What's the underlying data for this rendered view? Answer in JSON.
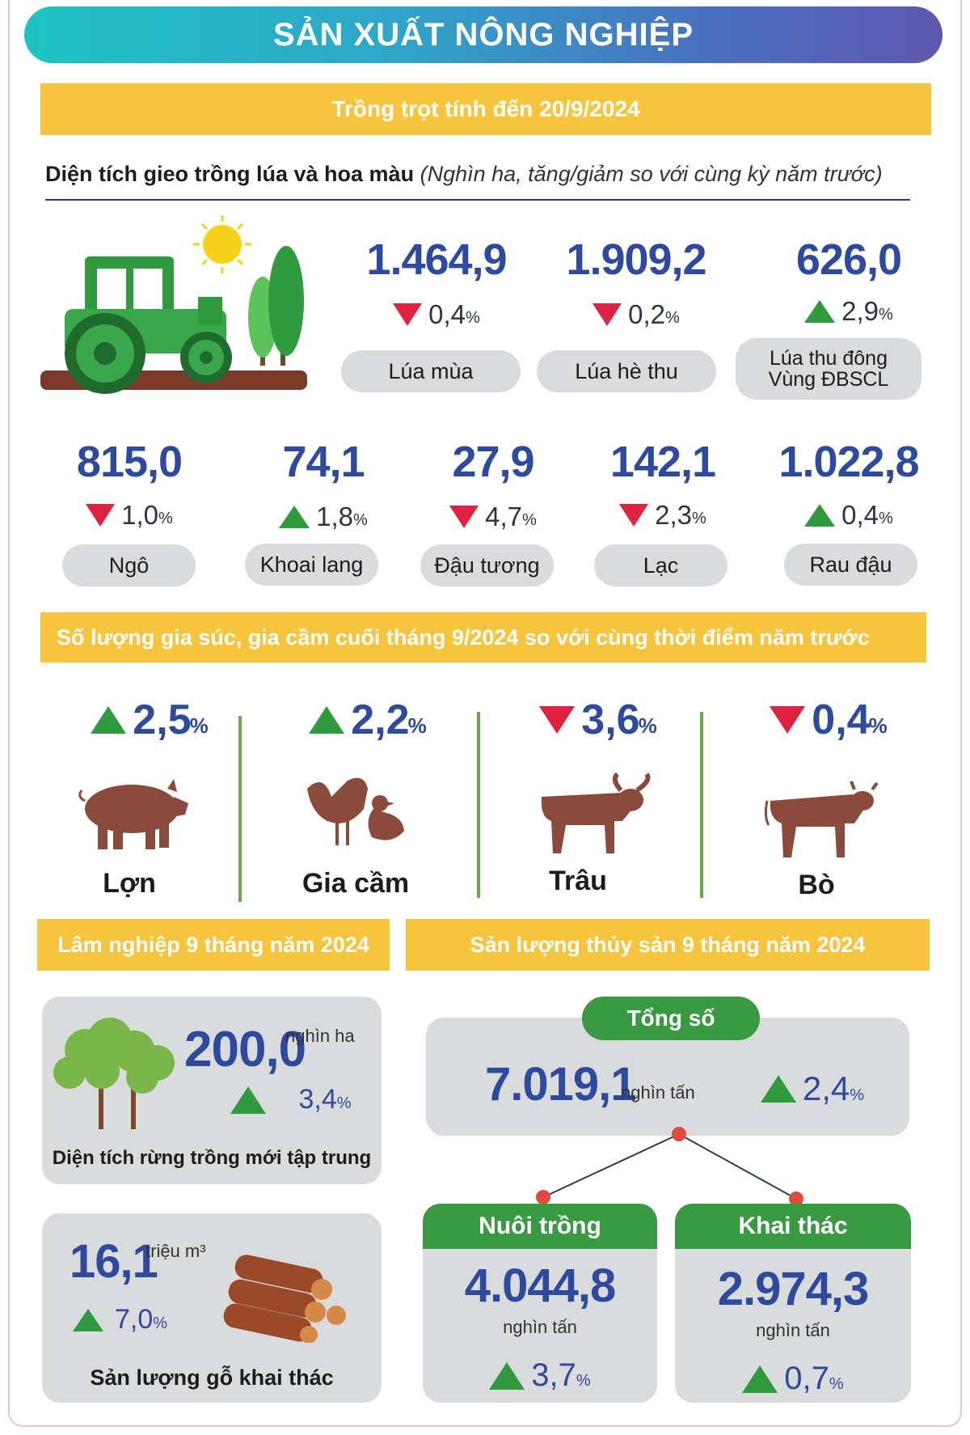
{
  "title": "SẢN XUẤT NÔNG NGHIỆP",
  "crops": {
    "header": "Trồng trọt tính đến 20/9/2024",
    "subtitle": "Diện tích gieo trồng lúa và hoa màu",
    "subtitle_note": "(Nghìn ha, tăng/giảm so với cùng kỳ năm trước)",
    "items": [
      {
        "value": "1.464,9",
        "change": "0,4",
        "pct": "%",
        "direction": "down",
        "label": "Lúa mùa"
      },
      {
        "value": "1.909,2",
        "change": "0,2",
        "pct": "%",
        "direction": "down",
        "label": "Lúa hè thu"
      },
      {
        "value": "626,0",
        "change": "2,9",
        "pct": "%",
        "direction": "up",
        "label": "Lúa thu đông",
        "label2": "Vùng ĐBSCL"
      },
      {
        "value": "815,0",
        "change": "1,0",
        "pct": "%",
        "direction": "down",
        "label": "Ngô"
      },
      {
        "value": "74,1",
        "change": "1,8",
        "pct": "%",
        "direction": "up",
        "label": "Khoai lang"
      },
      {
        "value": "27,9",
        "change": "4,7",
        "pct": "%",
        "direction": "down",
        "label": "Đậu tương"
      },
      {
        "value": "142,1",
        "change": "2,3",
        "pct": "%",
        "direction": "down",
        "label": "Lạc"
      },
      {
        "value": "1.022,8",
        "change": "0,4",
        "pct": "%",
        "direction": "up",
        "label": "Rau đậu"
      }
    ]
  },
  "livestock": {
    "header": "Số lượng gia súc, gia cầm cuối tháng 9/2024 so với cùng thời điểm năm trước",
    "items": [
      {
        "change": "2,5",
        "pct": "%",
        "direction": "up",
        "label": "Lợn",
        "icon": "pig-icon"
      },
      {
        "change": "2,2",
        "pct": "%",
        "direction": "up",
        "label": "Gia cầm",
        "icon": "poultry-icon"
      },
      {
        "change": "3,6",
        "pct": "%",
        "direction": "down",
        "label": "Trâu",
        "icon": "buffalo-icon"
      },
      {
        "change": "0,4",
        "pct": "%",
        "direction": "down",
        "label": "Bò",
        "icon": "cow-icon"
      }
    ]
  },
  "forestry": {
    "header": "Lâm nghiệp 9 tháng năm 2024",
    "planted": {
      "value": "200,0",
      "unit": "nghìn ha",
      "change": "3,4",
      "pct": "%",
      "direction": "up",
      "label": "Diện tích rừng trồng mới tập trung"
    },
    "timber": {
      "value": "16,1",
      "unit": "triệu m³",
      "change": "7,0",
      "pct": "%",
      "direction": "up",
      "label": "Sản lượng gỗ khai thác"
    }
  },
  "fishery": {
    "header": "Sản lượng thủy sản 9 tháng năm 2024",
    "total": {
      "label": "Tổng số",
      "value": "7.019,1",
      "unit": "nghìn tấn",
      "change": "2,4",
      "pct": "%",
      "direction": "up"
    },
    "farming": {
      "label": "Nuôi trồng",
      "value": "4.044,8",
      "unit": "nghìn tấn",
      "change": "3,7",
      "pct": "%",
      "direction": "up"
    },
    "catching": {
      "label": "Khai thác",
      "value": "2.974,3",
      "unit": "nghìn tấn",
      "change": "0,7",
      "pct": "%",
      "direction": "up"
    }
  },
  "colors": {
    "up": "#2f9a3e",
    "down": "#e0213f",
    "value": "#2e4a9e",
    "accent_yellow": "#f6c53d",
    "animal": "#8a4a3c"
  }
}
